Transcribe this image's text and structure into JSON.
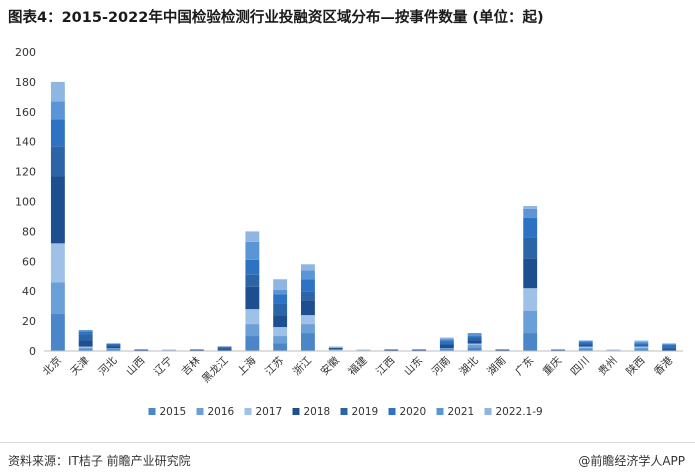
{
  "header": {
    "title": "图表4：2015-2022年中国检验检测行业投融资区域分布—按事件数量 (单位：起)"
  },
  "footer": {
    "source": "资料来源：IT桔子 前瞻产业研究院",
    "brand": "@前瞻经济学人APP"
  },
  "chart_data": {
    "type": "bar",
    "stacked": true,
    "title": "图表4：2015-2022年中国检验检测行业投融资区域分布—按事件数量 (单位：起)",
    "xlabel": "",
    "ylabel": "",
    "ylim": [
      0,
      200
    ],
    "yticks": [
      0,
      20,
      40,
      60,
      80,
      100,
      120,
      140,
      160,
      180,
      200
    ],
    "grid": false,
    "legend_position": "bottom",
    "categories": [
      "北京",
      "天津",
      "河北",
      "山西",
      "辽宁",
      "吉林",
      "黑龙江",
      "上海",
      "江苏",
      "浙江",
      "安徽",
      "福建",
      "江西",
      "山东",
      "河南",
      "湖北",
      "湖南",
      "广东",
      "重庆",
      "四川",
      "贵州",
      "陕西",
      "香港"
    ],
    "series": [
      {
        "name": "2015",
        "color": "#4a86c8",
        "values": [
          25,
          1,
          1,
          0,
          0,
          0,
          0,
          10,
          5,
          12,
          0,
          0,
          0,
          0,
          1,
          2,
          0,
          12,
          0,
          1,
          0,
          1,
          0
        ]
      },
      {
        "name": "2016",
        "color": "#6a9fd8",
        "values": [
          21,
          1,
          1,
          0,
          0,
          0,
          0,
          8,
          5,
          6,
          0,
          0,
          0,
          0,
          1,
          2,
          0,
          15,
          0,
          1,
          0,
          1,
          0
        ]
      },
      {
        "name": "2017",
        "color": "#9fc1e8",
        "values": [
          26,
          1,
          0,
          0,
          1,
          0,
          0,
          10,
          6,
          6,
          1,
          1,
          0,
          0,
          0,
          1,
          0,
          15,
          0,
          1,
          1,
          1,
          0
        ]
      },
      {
        "name": "2018",
        "color": "#1d4e8f",
        "values": [
          45,
          4,
          1,
          1,
          0,
          1,
          1,
          15,
          8,
          10,
          1,
          0,
          1,
          1,
          2,
          2,
          1,
          20,
          0,
          1,
          0,
          0,
          1
        ]
      },
      {
        "name": "2019",
        "color": "#2c64a8",
        "values": [
          20,
          4,
          1,
          0,
          0,
          0,
          1,
          8,
          8,
          6,
          0,
          0,
          0,
          0,
          1,
          2,
          0,
          14,
          1,
          1,
          0,
          1,
          1
        ]
      },
      {
        "name": "2020",
        "color": "#2e72c3",
        "values": [
          18,
          2,
          1,
          0,
          0,
          0,
          1,
          10,
          6,
          8,
          0,
          0,
          0,
          0,
          2,
          1,
          0,
          13,
          0,
          1,
          0,
          1,
          2
        ]
      },
      {
        "name": "2021",
        "color": "#5a95d5",
        "values": [
          12,
          1,
          0,
          0,
          0,
          0,
          0,
          12,
          3,
          6,
          0,
          0,
          0,
          0,
          1,
          2,
          0,
          6,
          0,
          1,
          0,
          1,
          1
        ]
      },
      {
        "name": "2022.1-9",
        "color": "#8fb6e3",
        "values": [
          13,
          0,
          0,
          0,
          0,
          0,
          0,
          7,
          7,
          4,
          1,
          0,
          0,
          0,
          1,
          0,
          0,
          2,
          0,
          0,
          0,
          1,
          0
        ]
      }
    ]
  }
}
